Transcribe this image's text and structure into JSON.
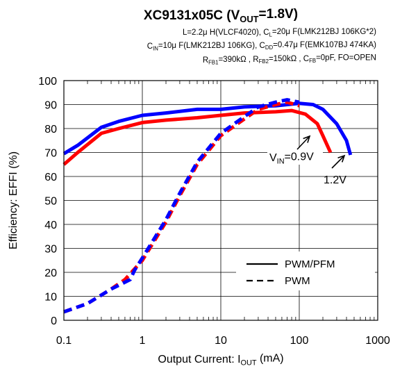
{
  "chart_data": {
    "type": "line",
    "title": "XC9131x05C (V<sub>OUT</sub>=1.8V)",
    "conditions": [
      "L=2.2μ H(VLCF4020), C<sub>L</sub>=20μ F(LMK212BJ 106KG*2)",
      "C<sub>IN</sub>=10μ F(LMK212BJ 106KG), C<sub>DD</sub>=0.47μ F(EMK107BJ 474KA)",
      "R<sub>FB1</sub>=390kΩ , R<sub>FB2</sub>=150kΩ , C<sub>FB</sub>=0pF, FO=OPEN"
    ],
    "xlabel": "Output Current: I<sub>OUT</sub> (mA)",
    "ylabel": "Efficiency: EFFI (%)",
    "x_scale": "log",
    "xlim": [
      0.1,
      1000
    ],
    "ylim": [
      0,
      100
    ],
    "x_ticks": [
      0.1,
      1,
      10,
      100,
      1000
    ],
    "x_tick_labels": [
      "0.1",
      "1",
      "10",
      "100",
      "1000"
    ],
    "y_ticks": [
      0,
      10,
      20,
      30,
      40,
      50,
      60,
      70,
      80,
      90,
      100
    ],
    "y_tick_labels": [
      "0",
      "10",
      "20",
      "30",
      "40",
      "50",
      "60",
      "70",
      "80",
      "90",
      "100"
    ],
    "grid": true,
    "legend": {
      "placement": "bottom-right",
      "entries": [
        {
          "label": "PWM/PFM",
          "style": "solid"
        },
        {
          "label": "PWM",
          "style": "dashed"
        }
      ]
    },
    "annotations": [
      {
        "text": "V<sub>IN</sub>=0.9V",
        "series_color": "#ff0000"
      },
      {
        "text": "1.2V",
        "series_color": "#0000ff"
      }
    ],
    "series": [
      {
        "vin": "0.9V",
        "mode": "PWM/PFM",
        "color": "#ff0000",
        "style": "solid",
        "points": [
          [
            0.1,
            65
          ],
          [
            0.15,
            70
          ],
          [
            0.3,
            78
          ],
          [
            0.5,
            80
          ],
          [
            1,
            82.5
          ],
          [
            2,
            83.5
          ],
          [
            5,
            84.5
          ],
          [
            10,
            85.5
          ],
          [
            20,
            86.5
          ],
          [
            50,
            87
          ],
          [
            80,
            87.5
          ],
          [
            120,
            86
          ],
          [
            170,
            82
          ],
          [
            200,
            77
          ],
          [
            250,
            70
          ]
        ]
      },
      {
        "vin": "1.2V",
        "mode": "PWM/PFM",
        "color": "#0000ff",
        "style": "solid",
        "points": [
          [
            0.1,
            69.5
          ],
          [
            0.15,
            73
          ],
          [
            0.3,
            80.5
          ],
          [
            0.5,
            83
          ],
          [
            1,
            85.5
          ],
          [
            2,
            86.5
          ],
          [
            5,
            88
          ],
          [
            10,
            88
          ],
          [
            20,
            89
          ],
          [
            50,
            89.5
          ],
          [
            100,
            90.5
          ],
          [
            150,
            90
          ],
          [
            200,
            88
          ],
          [
            300,
            82
          ],
          [
            400,
            75
          ],
          [
            450,
            69
          ]
        ]
      },
      {
        "vin": "0.9V",
        "mode": "PWM",
        "color": "#ff0000",
        "style": "dashed",
        "points": [
          [
            0.1,
            3.5
          ],
          [
            0.2,
            7
          ],
          [
            0.4,
            13
          ],
          [
            0.6,
            17
          ],
          [
            1,
            25
          ],
          [
            2,
            41
          ],
          [
            3,
            52
          ],
          [
            5,
            65
          ],
          [
            10,
            77
          ],
          [
            20,
            84
          ],
          [
            30,
            88
          ],
          [
            50,
            90
          ],
          [
            70,
            91
          ],
          [
            100,
            89.5
          ]
        ]
      },
      {
        "vin": "1.2V",
        "mode": "PWM",
        "color": "#0000ff",
        "style": "dashed",
        "points": [
          [
            0.1,
            3.5
          ],
          [
            0.2,
            7
          ],
          [
            0.4,
            13
          ],
          [
            0.7,
            17
          ],
          [
            0.8,
            21
          ],
          [
            1,
            26
          ],
          [
            2,
            42
          ],
          [
            3,
            53
          ],
          [
            5,
            66
          ],
          [
            10,
            78
          ],
          [
            20,
            85
          ],
          [
            30,
            89
          ],
          [
            50,
            91
          ],
          [
            70,
            92
          ],
          [
            100,
            91
          ]
        ]
      }
    ]
  }
}
